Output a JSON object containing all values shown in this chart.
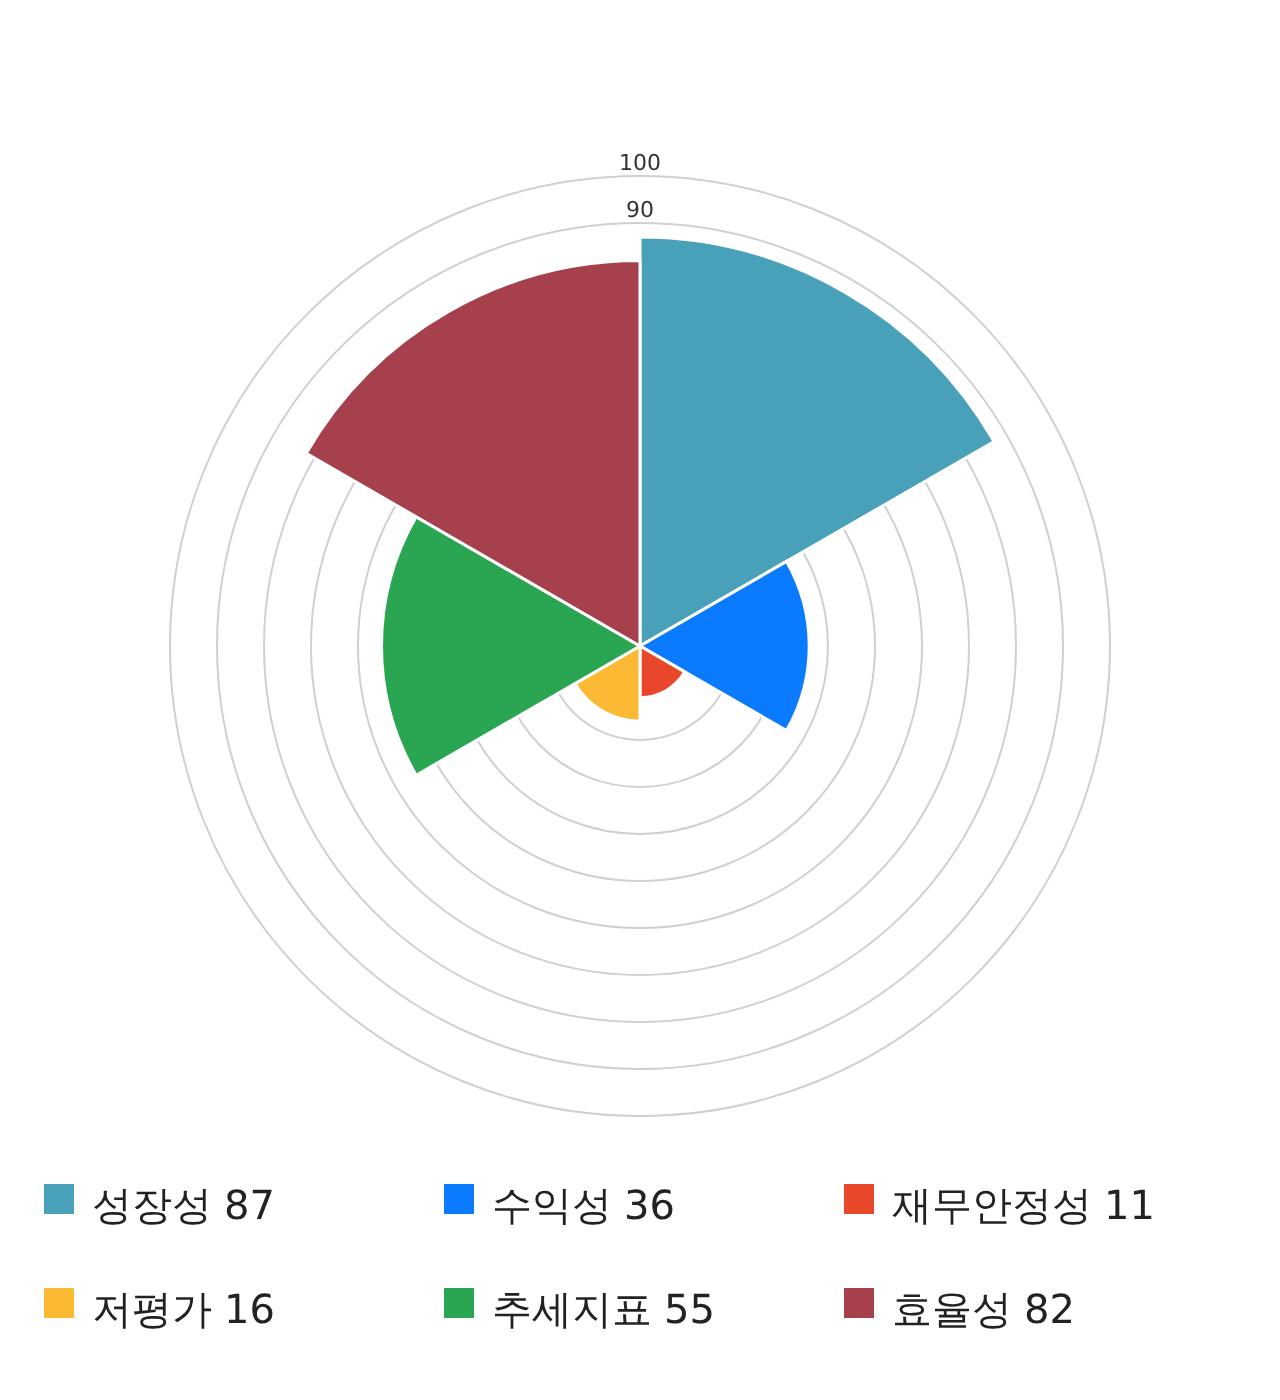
{
  "chart_data": {
    "type": "other",
    "categories": [
      "성장성",
      "수익성",
      "재무안정성",
      "저평가",
      "추세지표",
      "효율성"
    ],
    "values": [
      87,
      36,
      11,
      16,
      55,
      82
    ],
    "value_labels": [
      "87",
      "36",
      "11",
      "16",
      "55",
      "82"
    ],
    "colors": [
      "#48a0b9",
      "#0a7bff",
      "#e8472a",
      "#fbb934",
      "#2aa652",
      "#a6404d"
    ],
    "annotations": [
      "90",
      "100"
    ]
  }
}
